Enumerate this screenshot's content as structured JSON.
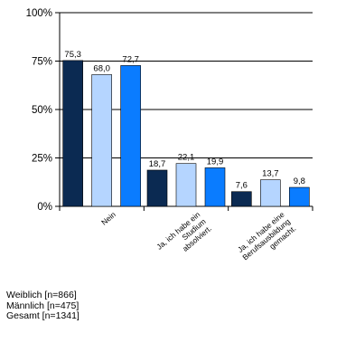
{
  "chart_data": {
    "type": "bar",
    "categories": [
      "Nein",
      "Ja, ich habe ein Studium absolviert.",
      "Ja, ich habe eine Berufsausbildung gemacht."
    ],
    "category_label_lines": [
      [
        "Nein"
      ],
      [
        "Ja, ich habe ein",
        "Studium",
        "absolviert."
      ],
      [
        "Ja, ich habe eine",
        "Berufsausbildung",
        "gemacht."
      ]
    ],
    "series": [
      {
        "name": "Weiblich [n=866]",
        "values": [
          75.3,
          18.7,
          7.6
        ],
        "labels": [
          "75,3",
          "18,7",
          "7,6"
        ],
        "color": "#0b2a52"
      },
      {
        "name": "Männlich [n=475]",
        "values": [
          68.0,
          22.1,
          13.7
        ],
        "labels": [
          "68,0",
          "22,1",
          "13,7"
        ],
        "color": "#b5d5ff"
      },
      {
        "name": "Gesamt [n=1341]",
        "values": [
          72.7,
          19.9,
          9.8
        ],
        "labels": [
          "72,7",
          "19,9",
          "9,8"
        ],
        "color": "#0a7cff"
      }
    ],
    "y_ticks": [
      0,
      25,
      50,
      75,
      100
    ],
    "y_tick_labels": [
      "0%",
      "25%",
      "50%",
      "75%",
      "100%"
    ],
    "ylim": [
      0,
      100
    ],
    "grid": true,
    "legend_position": "bottom-left"
  }
}
